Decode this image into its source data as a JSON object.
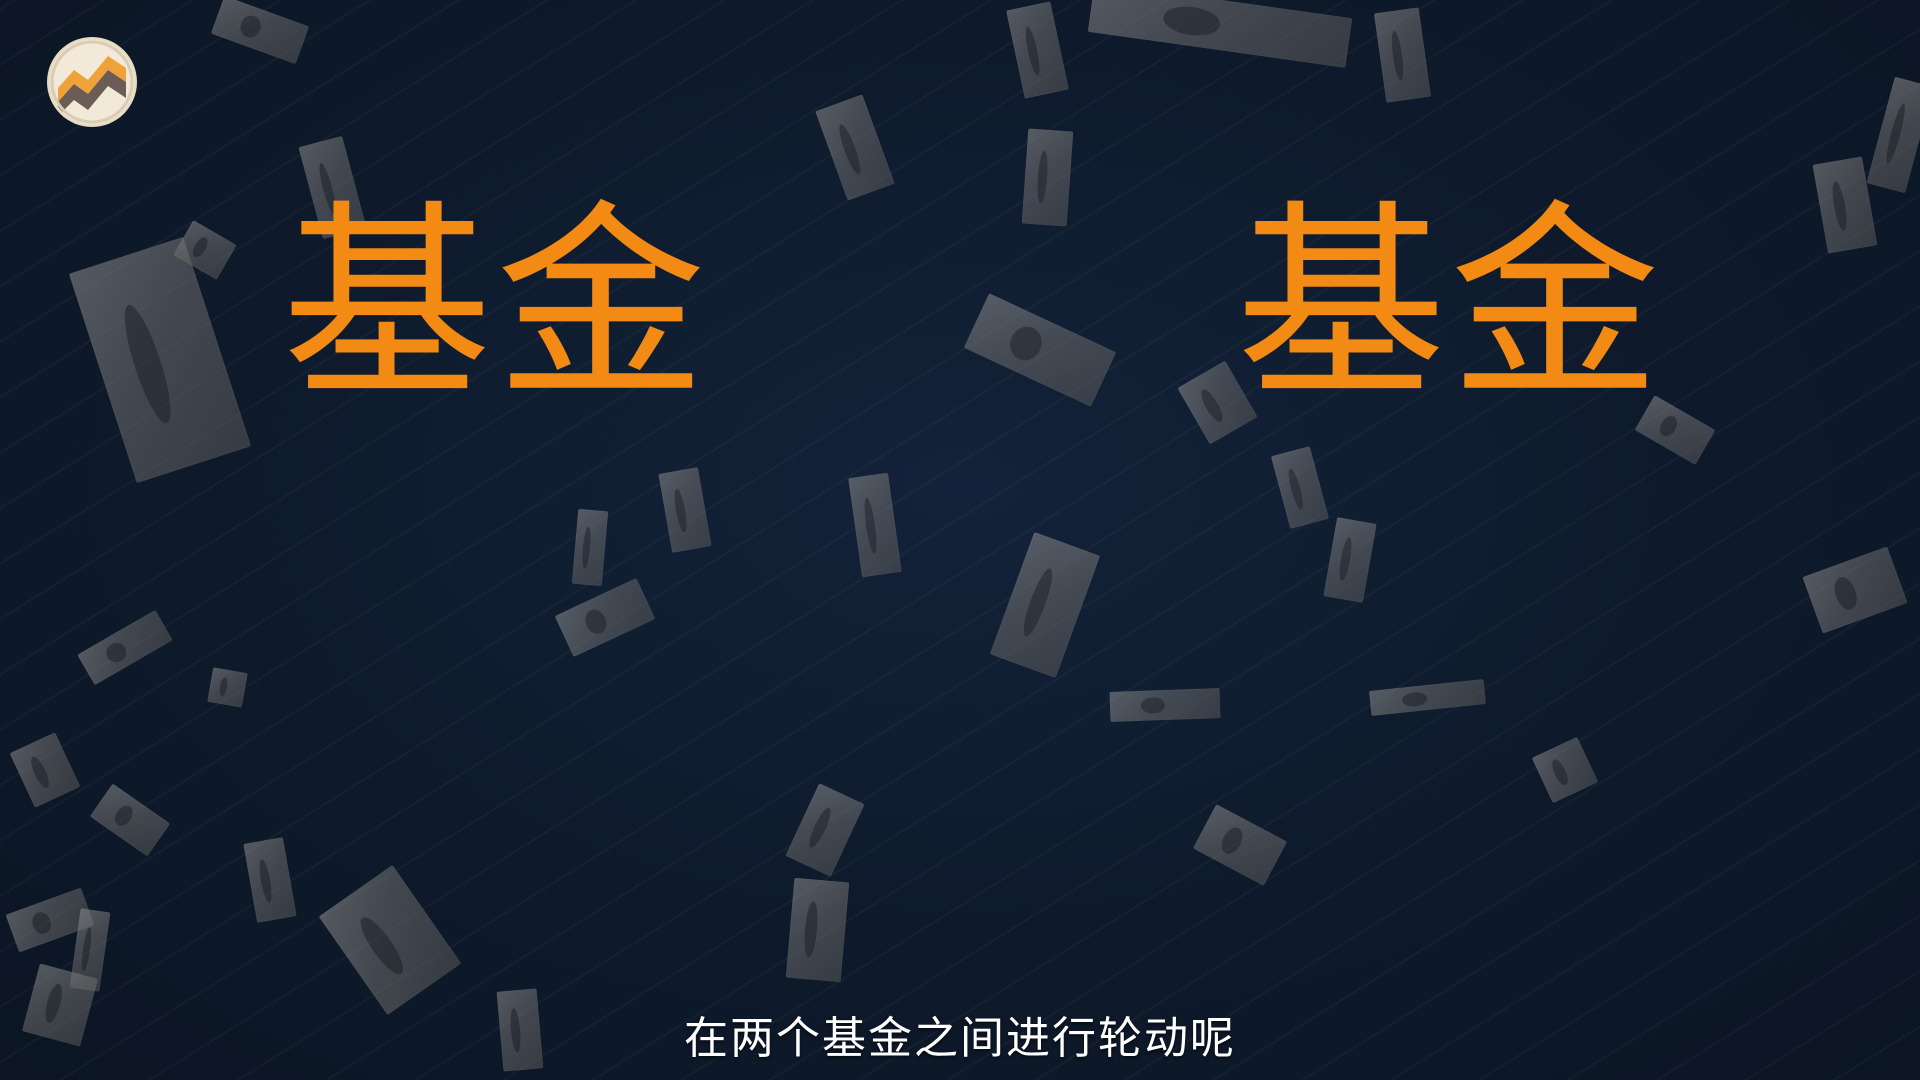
{
  "logo": {
    "icon": "rising-chart-logo-icon",
    "colors": [
      "#f0a23a",
      "#6b5c55",
      "#f2e9d8"
    ]
  },
  "headline": {
    "left_word": "基金",
    "right_word": "基金",
    "color": "#f28a14"
  },
  "subtitle": {
    "text": "在两个基金之间进行轮动呢"
  },
  "background": {
    "motif": "falling-dollar-bills",
    "base_color": "#0e1a2a"
  }
}
